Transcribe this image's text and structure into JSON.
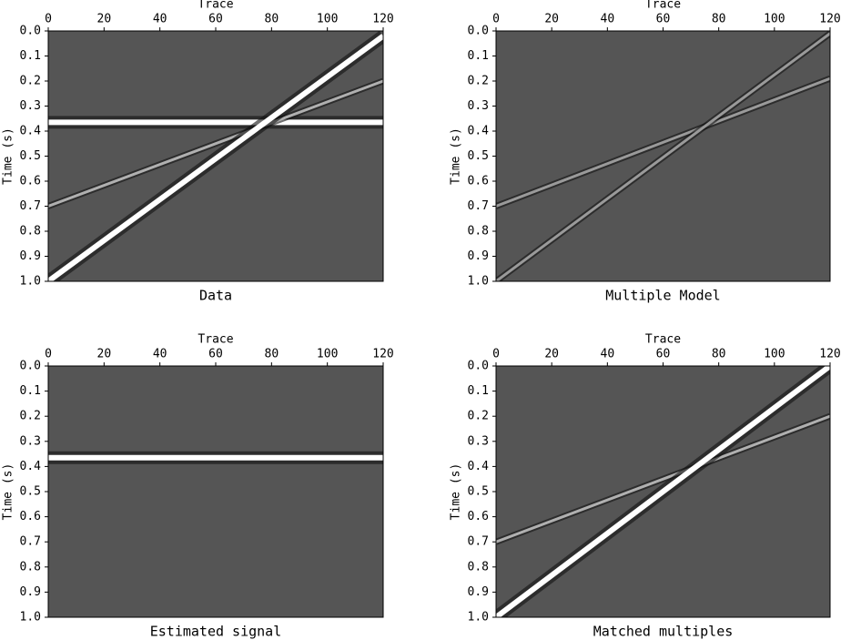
{
  "chart_data": [
    {
      "type": "seismic",
      "title": "Data",
      "xlabel": "Trace",
      "ylabel": "Time (s)",
      "xlim": [
        0,
        120
      ],
      "ylim": [
        0,
        1.0
      ],
      "xticks": [
        0,
        20,
        40,
        60,
        80,
        100,
        120
      ],
      "yticks": [
        {
          "value": 0,
          "label": "0.0"
        },
        0.1,
        0.2,
        0.3,
        0.4,
        0.5,
        0.6,
        0.7,
        0.8,
        0.9,
        {
          "value": 1,
          "label": "1.0"
        }
      ],
      "background": "#555555",
      "series": [
        {
          "color": "#ffffff",
          "x": [
            0,
            120
          ],
          "values": [
            0.365,
            0.365
          ]
        },
        {
          "color": "#b0b0b0",
          "x": [
            0,
            120
          ],
          "values": [
            0.7,
            0.2
          ]
        },
        {
          "color": "#ffffff",
          "x": [
            0,
            120
          ],
          "values": [
            1.0,
            0.02
          ]
        }
      ]
    },
    {
      "type": "seismic",
      "title": "Multiple Model",
      "xlabel": "Trace",
      "ylabel": "Time (s)",
      "xlim": [
        0,
        120
      ],
      "ylim": [
        0,
        1.0
      ],
      "xticks": [
        0,
        20,
        40,
        60,
        80,
        100,
        120
      ],
      "yticks": [
        {
          "value": 0,
          "label": "0.0"
        },
        0.1,
        0.2,
        0.3,
        0.4,
        0.5,
        0.6,
        0.7,
        0.8,
        0.9,
        {
          "value": 1,
          "label": "1.0"
        }
      ],
      "background": "#555555",
      "series": [
        {
          "color": "#9a9a9a",
          "x": [
            0,
            120
          ],
          "values": [
            0.7,
            0.19
          ]
        },
        {
          "color": "#9a9a9a",
          "x": [
            0,
            120
          ],
          "values": [
            1.0,
            0.01
          ]
        }
      ]
    },
    {
      "type": "seismic",
      "title": "Estimated signal",
      "xlabel": "Trace",
      "ylabel": "Time (s)",
      "xlim": [
        0,
        120
      ],
      "ylim": [
        0,
        1.0
      ],
      "xticks": [
        0,
        20,
        40,
        60,
        80,
        100,
        120
      ],
      "yticks": [
        {
          "value": 0,
          "label": "0.0"
        },
        0.1,
        0.2,
        0.3,
        0.4,
        0.5,
        0.6,
        0.7,
        0.8,
        0.9,
        {
          "value": 1,
          "label": "1.0"
        }
      ],
      "background": "#555555",
      "series": [
        {
          "color": "#ffffff",
          "x": [
            0,
            120
          ],
          "values": [
            0.365,
            0.365
          ]
        }
      ]
    },
    {
      "type": "seismic",
      "title": "Matched multiples",
      "xlabel": "Trace",
      "ylabel": "Time (s)",
      "xlim": [
        0,
        120
      ],
      "ylim": [
        0,
        1.0
      ],
      "xticks": [
        0,
        20,
        40,
        60,
        80,
        100,
        120
      ],
      "yticks": [
        {
          "value": 0,
          "label": "0.0"
        },
        0.1,
        0.2,
        0.3,
        0.4,
        0.5,
        0.6,
        0.7,
        0.8,
        0.9,
        {
          "value": 1,
          "label": "1.0"
        }
      ],
      "background": "#555555",
      "series": [
        {
          "color": "#b0b0b0",
          "x": [
            0,
            120
          ],
          "values": [
            0.7,
            0.2
          ]
        },
        {
          "color": "#ffffff",
          "x": [
            0,
            120
          ],
          "values": [
            1.0,
            0.0
          ]
        }
      ]
    }
  ]
}
